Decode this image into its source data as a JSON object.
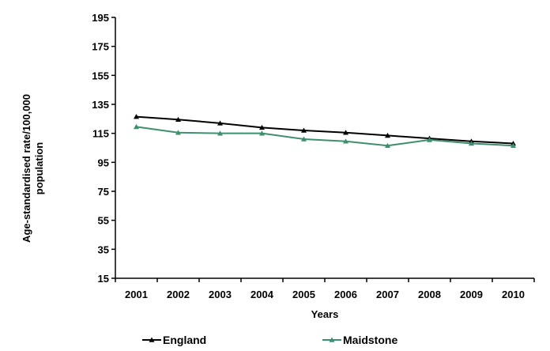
{
  "chart_data": {
    "type": "line",
    "title": "",
    "xlabel": "Years",
    "ylabel_lines": [
      "Age-standardised rate/100,000",
      "population"
    ],
    "categories": [
      "2001",
      "2002",
      "2003",
      "2004",
      "2005",
      "2006",
      "2007",
      "2008",
      "2009",
      "2010"
    ],
    "ylim": [
      15,
      195
    ],
    "yticks": [
      15,
      35,
      55,
      75,
      95,
      115,
      135,
      155,
      175,
      195
    ],
    "grid": false,
    "legend_position": "bottom",
    "series": [
      {
        "name": "England",
        "color": "#000000",
        "marker": "triangle",
        "values": [
          126.5,
          124.5,
          122,
          119,
          117,
          115.5,
          113.5,
          111.5,
          109.5,
          108
        ]
      },
      {
        "name": "Maidstone",
        "color": "#3f8f6f",
        "marker": "triangle",
        "values": [
          119.5,
          115.5,
          115,
          115,
          111,
          109.5,
          106.5,
          110.5,
          108,
          106.5
        ]
      }
    ]
  }
}
